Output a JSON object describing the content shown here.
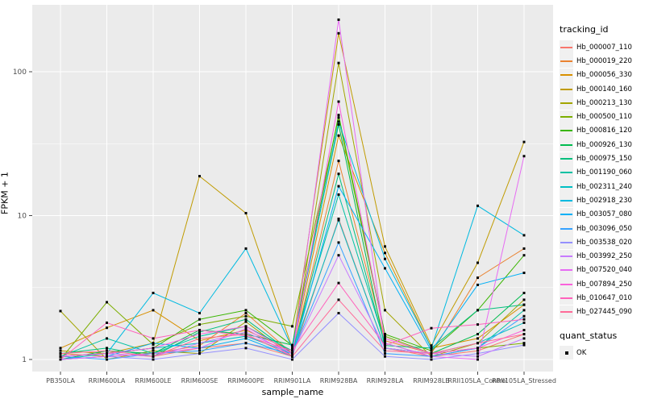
{
  "figure": {
    "panel_bg": "#EBEBEB",
    "grid_color": "#FFFFFF",
    "tick_color": "#333333",
    "tick_label_color": "#4D4D4D",
    "legend_key_bg": "#F0F0F0"
  },
  "legend": {
    "tracking_title": "tracking_id",
    "quant_title": "quant_status",
    "quant_label": "OK"
  },
  "chart_data": {
    "type": "line",
    "xlabel": "sample_name",
    "ylabel": "FPKM + 1",
    "y_scale": "log10",
    "y_ticks": [
      1,
      10,
      100
    ],
    "ylim": [
      1,
      300
    ],
    "grid": true,
    "legend_position": "right",
    "point_shape": "square",
    "point_color": "#000000",
    "x_categories": [
      "PB350LA",
      "RRIM600LA",
      "RRIM600LE",
      "RRIM600SE",
      "RRIM600PE",
      "RRIM901LA",
      "RRIM928BA",
      "RRIM928LA",
      "RRIM928LB",
      "RRII105LA_Control",
      "RRII105LA_Stressed"
    ],
    "series": [
      {
        "name": "Hb_000007_110",
        "color": "#F8766D",
        "values": [
          1.05,
          1.1,
          1.05,
          1.2,
          1.3,
          1.05,
          9.5,
          1.2,
          1.05,
          1.15,
          1.5
        ]
      },
      {
        "name": "Hb_000019_220",
        "color": "#EA8331",
        "values": [
          1.1,
          1.05,
          1.1,
          1.25,
          2.1,
          1.1,
          24,
          1.35,
          1.1,
          3.7,
          5.9
        ]
      },
      {
        "name": "Hb_000056_330",
        "color": "#D89000",
        "values": [
          1.2,
          1.66,
          2.2,
          1.35,
          1.6,
          1.15,
          36,
          5.5,
          1.2,
          1.4,
          2.4
        ]
      },
      {
        "name": "Hb_000140_160",
        "color": "#C09B00",
        "values": [
          1.15,
          1.1,
          1.3,
          18.8,
          10.4,
          1.2,
          185,
          6.1,
          1.25,
          4.7,
          32.5
        ]
      },
      {
        "name": "Hb_000213_130",
        "color": "#A3A500",
        "values": [
          2.17,
          1.0,
          1.15,
          1.1,
          1.83,
          1.05,
          115,
          2.2,
          1.05,
          1.3,
          2.6
        ]
      },
      {
        "name": "Hb_000500_110",
        "color": "#7CAE00",
        "values": [
          1.0,
          2.5,
          1.27,
          1.75,
          2.0,
          1.7,
          48,
          1.45,
          1.1,
          1.2,
          1.3
        ]
      },
      {
        "name": "Hb_000816_120",
        "color": "#39B600",
        "values": [
          1.05,
          1.1,
          1.2,
          1.9,
          2.2,
          1.25,
          50,
          1.5,
          1.15,
          2.2,
          5.3
        ]
      },
      {
        "name": "Hb_000926_130",
        "color": "#00BB4E",
        "values": [
          1.0,
          1.15,
          1.1,
          1.6,
          1.5,
          1.26,
          43,
          1.2,
          1.1,
          1.5,
          2.9
        ]
      },
      {
        "name": "Hb_000975_150",
        "color": "#00BF7D",
        "values": [
          1.1,
          1.2,
          1.05,
          1.55,
          1.9,
          1.1,
          19.5,
          1.25,
          1.2,
          2.2,
          2.4
        ]
      },
      {
        "name": "Hb_001190_060",
        "color": "#00C1A3",
        "values": [
          1.05,
          1.4,
          1.1,
          1.45,
          1.7,
          1.15,
          14,
          1.3,
          1.05,
          1.2,
          2.2
        ]
      },
      {
        "name": "Hb_002311_240",
        "color": "#00BFC4",
        "values": [
          1.0,
          1.1,
          1.2,
          1.3,
          1.45,
          1.1,
          9.3,
          1.2,
          1.1,
          1.3,
          1.8
        ]
      },
      {
        "name": "Hb_002918_230",
        "color": "#00BAE0",
        "values": [
          1.05,
          1.1,
          2.9,
          2.1,
          5.9,
          1.2,
          45,
          5.0,
          1.2,
          11.7,
          7.3
        ]
      },
      {
        "name": "Hb_003057_080",
        "color": "#00B0F6",
        "values": [
          1.0,
          1.05,
          1.3,
          1.2,
          1.4,
          1.05,
          16,
          4.3,
          1.15,
          3.3,
          4.0
        ]
      },
      {
        "name": "Hb_003096_050",
        "color": "#35A2FF",
        "values": [
          1.05,
          1.0,
          1.1,
          1.15,
          1.3,
          1.1,
          6.5,
          1.1,
          1.05,
          1.2,
          2.0
        ]
      },
      {
        "name": "Hb_003538_020",
        "color": "#9590FF",
        "values": [
          1.0,
          1.05,
          1.0,
          1.1,
          1.2,
          1.0,
          2.1,
          1.05,
          1.0,
          1.1,
          1.26
        ]
      },
      {
        "name": "Hb_003992_250",
        "color": "#C77CFF",
        "values": [
          1.05,
          1.1,
          1.05,
          1.3,
          1.55,
          1.1,
          5.3,
          1.2,
          1.1,
          1.05,
          1.4
        ]
      },
      {
        "name": "Hb_007520_040",
        "color": "#E76BF3",
        "values": [
          1.0,
          1.05,
          1.1,
          1.2,
          1.64,
          1.05,
          230,
          1.3,
          1.05,
          1.0,
          25.9
        ]
      },
      {
        "name": "Hb_007894_250",
        "color": "#FA62DB",
        "values": [
          1.05,
          1.1,
          1.2,
          1.5,
          1.7,
          1.1,
          62,
          1.4,
          1.1,
          1.2,
          1.6
        ]
      },
      {
        "name": "Hb_010647_010",
        "color": "#FF62BC",
        "values": [
          1.0,
          1.8,
          1.4,
          1.6,
          1.46,
          1.15,
          3.4,
          1.25,
          1.65,
          1.75,
          1.9
        ]
      },
      {
        "name": "Hb_027445_090",
        "color": "#FF6A98",
        "values": [
          1.1,
          1.15,
          1.05,
          1.4,
          1.5,
          1.05,
          2.6,
          1.15,
          1.1,
          1.3,
          1.5
        ]
      }
    ]
  }
}
